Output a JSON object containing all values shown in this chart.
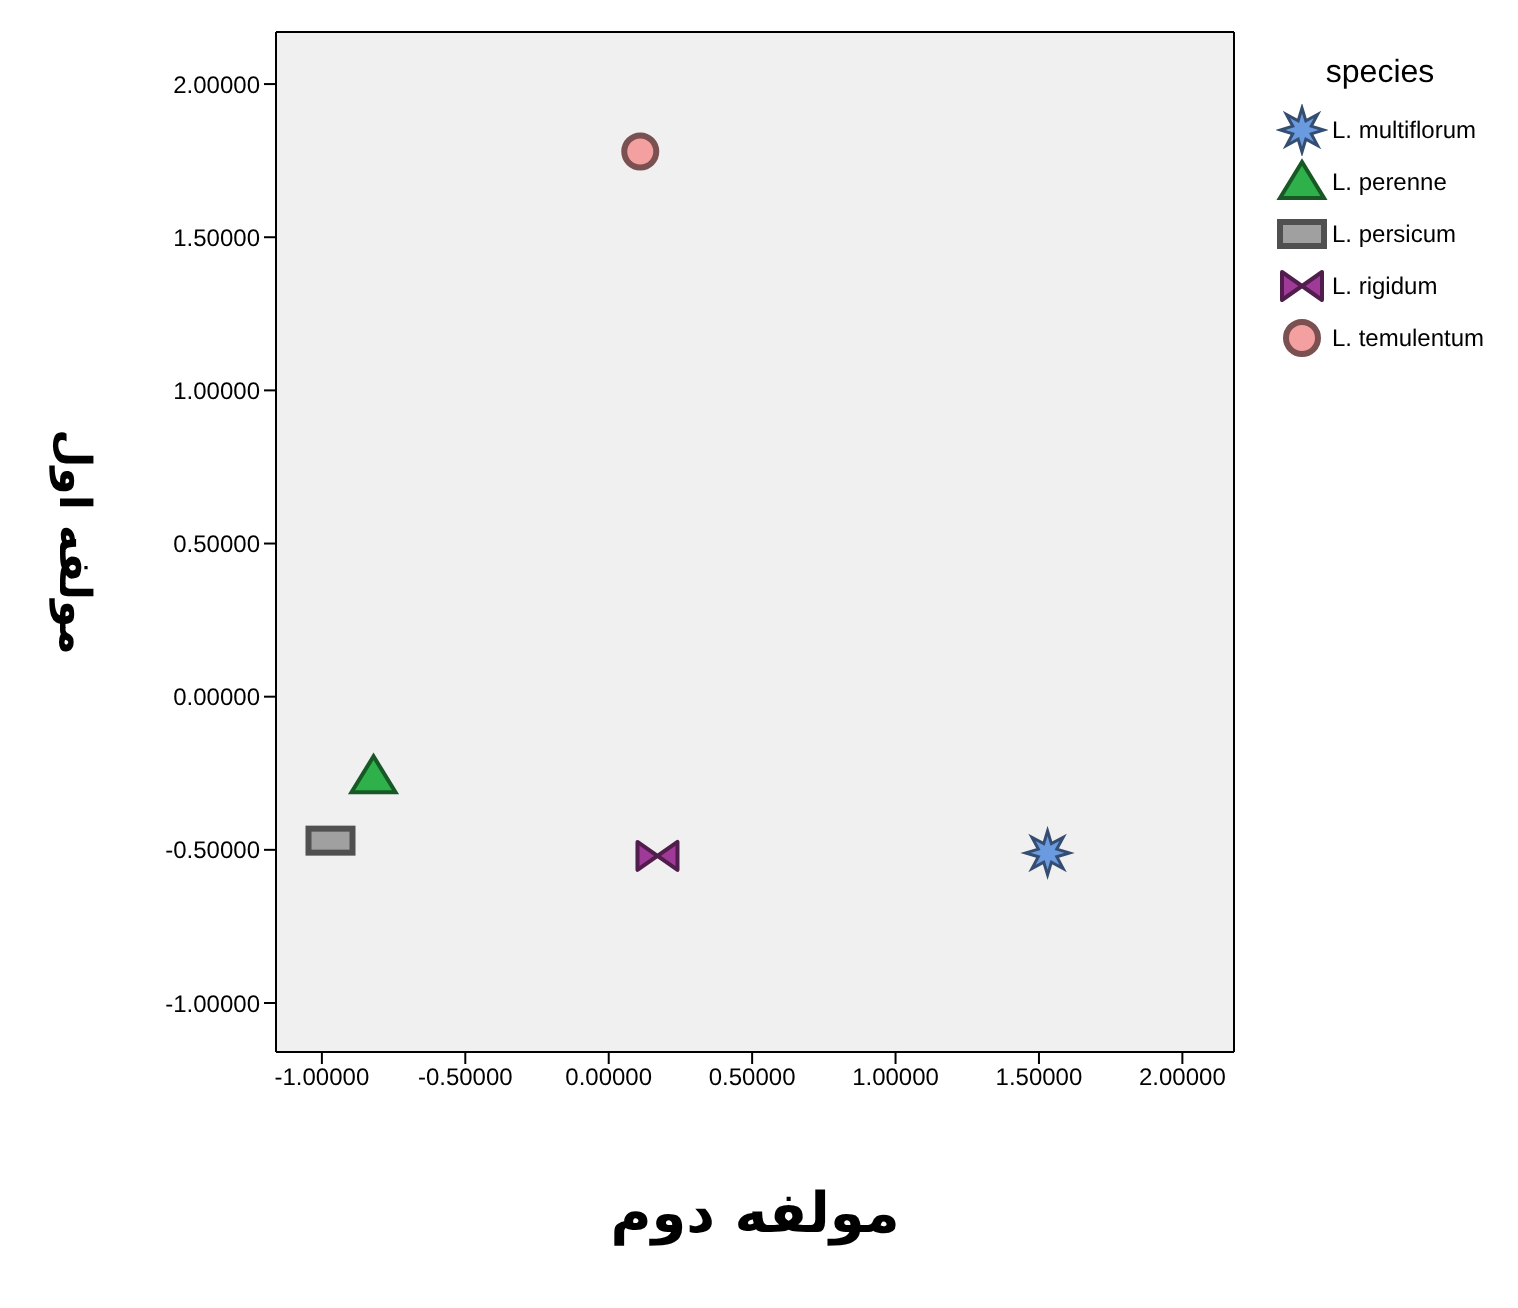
{
  "chart_data": {
    "type": "scatter",
    "xlabel": "مولفه دوم",
    "ylabel": "مولفه اول",
    "legend_title": "species",
    "legend": "top right",
    "xlim": [
      -1.16,
      2.18
    ],
    "ylim": [
      -1.16,
      2.17
    ],
    "xticks": [
      {
        "value": -1,
        "label": "-1.00000"
      },
      {
        "value": -0.5,
        "label": "-0.50000"
      },
      {
        "value": 0,
        "label": "0.00000"
      },
      {
        "value": 0.5,
        "label": "0.50000"
      },
      {
        "value": 1,
        "label": "1.00000"
      },
      {
        "value": 1.5,
        "label": "1.50000"
      },
      {
        "value": 2,
        "label": "2.00000"
      }
    ],
    "yticks": [
      {
        "value": -1,
        "label": "-1.00000"
      },
      {
        "value": -0.5,
        "label": "-0.50000"
      },
      {
        "value": 0,
        "label": "0.00000"
      },
      {
        "value": 0.5,
        "label": "0.50000"
      },
      {
        "value": 1,
        "label": "1.00000"
      },
      {
        "value": 1.5,
        "label": "1.50000"
      },
      {
        "value": 2,
        "label": "2.00000"
      }
    ],
    "series": [
      {
        "name": "L. multiflorum",
        "color": "#6a9ae0",
        "marker": "star",
        "x": [
          1.53
        ],
        "values": [
          -0.51
        ]
      },
      {
        "name": "L. perenne",
        "color": "#2eb04a",
        "marker": "triangle",
        "x": [
          -0.82
        ],
        "values": [
          -0.26
        ]
      },
      {
        "name": "L. persicum",
        "color": "#a0a0a0",
        "marker": "square",
        "x": [
          -0.97
        ],
        "values": [
          -0.47
        ]
      },
      {
        "name": "L. rigidum",
        "color": "#a03a98",
        "x": [
          0.17
        ],
        "values": [
          -0.52
        ]
      },
      {
        "name": "L. temulentum",
        "color": "#f4a0a0",
        "marker": "circle",
        "x": [
          0.11
        ],
        "values": [
          1.78
        ]
      }
    ]
  }
}
